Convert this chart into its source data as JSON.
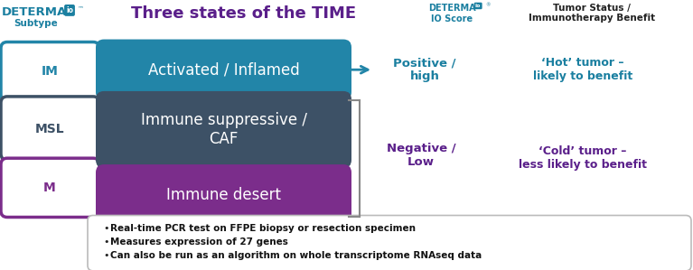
{
  "title": "Three states of the TIME",
  "title_color": "#5a1f8a",
  "determa_color": "#1a7fa0",
  "determa_purple": "#5a1f8a",
  "box_teal": "#2285a8",
  "box_dark": "#3d5166",
  "box_purple": "#7b2d8b",
  "label_im": "IM",
  "label_msl": "MSL",
  "label_m": "M",
  "bar1_text": "Activated / Inflamed",
  "bar2_text": "Immune suppressive /\nCAF",
  "bar3_text": "Immune desert",
  "positive_text": "Positive /\nhigh",
  "negative_text": "Negative /\nLow",
  "hot_text": "‘Hot’ tumor –\nlikely to benefit",
  "cold_text": "‘Cold’ tumor –\nless likely to benefit",
  "subtype_label": "Subtype",
  "bullet1": "Real-time PCR test on FFPE biopsy or resection specimen",
  "bullet2": "Measures expression of 27 genes",
  "bullet3": "Can also be run as an algorithm on whole transcriptome RNAseq data",
  "bg_color": "#ffffff",
  "io_label": "IO Score",
  "benefit_header_line1": "Tumor Status /",
  "benefit_header_line2": "Immunotherapy Benefit"
}
